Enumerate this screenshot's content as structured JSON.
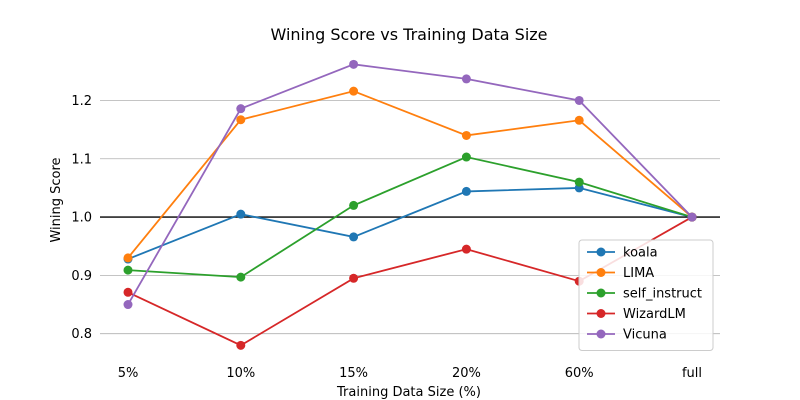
{
  "chart_data": {
    "type": "line",
    "title": "Wining Score vs Training Data Size",
    "xlabel": "Training Data Size (%)",
    "ylabel": "Wining Score",
    "categories": [
      "5%",
      "10%",
      "15%",
      "20%",
      "60%",
      "full"
    ],
    "ylim": [
      0.76,
      1.29
    ],
    "yticks": [
      0.8,
      0.9,
      1.0,
      1.1,
      1.2
    ],
    "ytick_labels": [
      "0.8",
      "0.9",
      "1.0",
      "1.1",
      "1.2"
    ],
    "grid": "horizontal",
    "reference_line": 1.0,
    "legend_position": "lower-right",
    "series": [
      {
        "name": "koala",
        "color": "#1f77b4",
        "values": [
          0.928,
          1.005,
          0.966,
          1.044,
          1.05,
          1.0
        ]
      },
      {
        "name": "LIMA",
        "color": "#ff7f0e",
        "values": [
          0.93,
          1.167,
          1.216,
          1.14,
          1.166,
          1.0
        ]
      },
      {
        "name": "self_instruct",
        "color": "#2ca02c",
        "values": [
          0.909,
          0.897,
          1.02,
          1.103,
          1.06,
          1.0
        ]
      },
      {
        "name": "WizardLM",
        "color": "#d62728",
        "values": [
          0.871,
          0.78,
          0.895,
          0.945,
          0.89,
          1.0
        ]
      },
      {
        "name": "Vicuna",
        "color": "#9467bd",
        "values": [
          0.85,
          1.186,
          1.262,
          1.237,
          1.2,
          1.0
        ]
      }
    ]
  }
}
